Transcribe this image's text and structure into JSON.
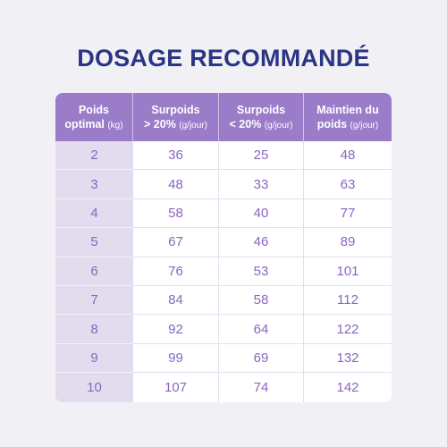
{
  "title": "DOSAGE RECOMMANDÉ",
  "table": {
    "headers": [
      {
        "line1": "Poids",
        "line2": "optimal ",
        "unit": "(kg)"
      },
      {
        "line1": "Surpoids",
        "line2": "> 20% ",
        "unit": "(g/jour)"
      },
      {
        "line1": "Surpoids",
        "line2": "< 20% ",
        "unit": "(g/jour)"
      },
      {
        "line1": "Maintien du",
        "line2": "poids ",
        "unit": "(g/jour)"
      }
    ],
    "rows": [
      [
        "2",
        "36",
        "25",
        "48"
      ],
      [
        "3",
        "48",
        "33",
        "63"
      ],
      [
        "4",
        "58",
        "40",
        "77"
      ],
      [
        "5",
        "67",
        "46",
        "89"
      ],
      [
        "6",
        "76",
        "53",
        "101"
      ],
      [
        "7",
        "84",
        "58",
        "112"
      ],
      [
        "8",
        "92",
        "64",
        "122"
      ],
      [
        "9",
        "99",
        "69",
        "132"
      ],
      [
        "10",
        "107",
        "74",
        "142"
      ]
    ]
  },
  "colors": {
    "title": "#2b3583",
    "header_bg": "#9b7cc9",
    "first_col_bg": "#e3dbee",
    "value_text": "#8a66bf",
    "background": "#f1f1f5"
  }
}
